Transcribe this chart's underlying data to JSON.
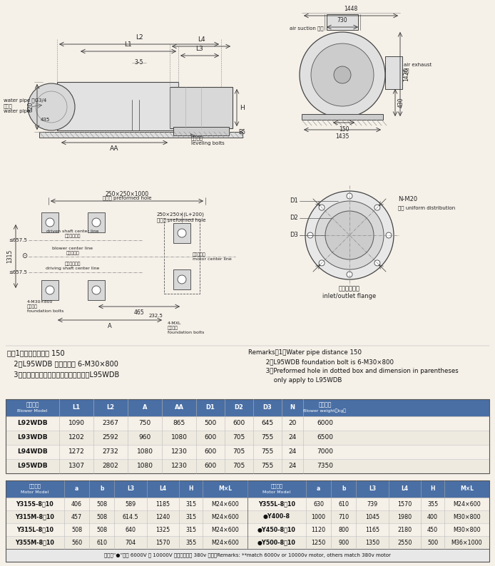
{
  "bg_color": "#f5f0e8",
  "notes_chinese": [
    "注：1、输水管间距为 150",
    "   2、L95WDB 地脚螺栓为 6-M30×800",
    "   3、虚线框内预留孔及括号内尺寸仅用于L95WDB"
  ],
  "notes_english": [
    "Remarks：1、Water pipe distance 150",
    "         2、L95WDB foundation bolt is 6-M30×800",
    "         3、Preformed hole in dotted box and dimension in parentheses",
    "             only apply to L95WDB"
  ],
  "table1_header": [
    "风机型号\nBlower Model",
    "L1",
    "L2",
    "A",
    "AA",
    "D1",
    "D2",
    "D3",
    "N",
    "主机重量\nBlower weight（kg）"
  ],
  "table1_header_color": "#4a6fa5",
  "table1_data": [
    [
      "L92WDB",
      "1090",
      "2367",
      "750",
      "865",
      "500",
      "600",
      "645",
      "20",
      "6000"
    ],
    [
      "L93WDB",
      "1202",
      "2592",
      "960",
      "1080",
      "600",
      "705",
      "755",
      "24",
      "6500"
    ],
    [
      "L94WDB",
      "1272",
      "2732",
      "1080",
      "1230",
      "600",
      "705",
      "755",
      "24",
      "7000"
    ],
    [
      "L95WDB",
      "1307",
      "2802",
      "1080",
      "1230",
      "600",
      "705",
      "755",
      "24",
      "7350"
    ]
  ],
  "table2_header": [
    "电机型号\nMotor Model",
    "a",
    "b",
    "L3",
    "L4",
    "H",
    "M×L"
  ],
  "table2_header_color": "#4a6fa5",
  "table2_data_left": [
    [
      "Y315S-8、10",
      "406",
      "508",
      "589",
      "1185",
      "315",
      "M24×600"
    ],
    [
      "Y315M-8、10",
      "457",
      "508",
      "614.5",
      "1240",
      "315",
      "M24×600"
    ],
    [
      "Y315L-8、10",
      "508",
      "508",
      "640",
      "1325",
      "315",
      "M24×600"
    ],
    [
      "Y355M-8、10",
      "560",
      "610",
      "704",
      "1570",
      "355",
      "M24×600"
    ]
  ],
  "table2_data_right": [
    [
      "Y355L-8、10",
      "630",
      "610",
      "739",
      "1570",
      "355",
      "M24×600"
    ],
    [
      "●Y400-8",
      "1000",
      "710",
      "1045",
      "1980",
      "400",
      "M30×800"
    ],
    [
      "●Y450-8、10",
      "1120",
      "800",
      "1165",
      "2180",
      "450",
      "M30×800"
    ],
    [
      "●Y500-8、10",
      "1250",
      "900",
      "1350",
      "2550",
      "500",
      "M36×1000"
    ]
  ],
  "table2_footer": "注：带“●”选用 6000V 或 10000V 电机，其余为 380v 电机。Remarks: **match 6000v or 10000v motor, others match 380v motor"
}
